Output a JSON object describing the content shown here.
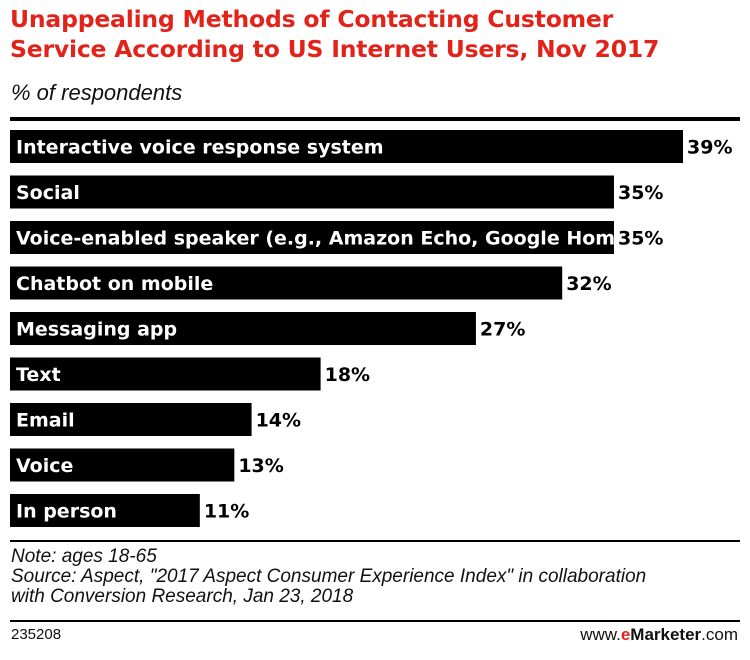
{
  "chart_data": {
    "type": "bar",
    "orientation": "horizontal",
    "title": "Unappealing Methods of Contacting Customer Service According to US Internet Users, Nov 2017",
    "title_lines": [
      "Unappealing Methods of Contacting Customer",
      "Service According to US Internet Users, Nov 2017"
    ],
    "subtitle": "% of respondents",
    "categories": [
      "Interactive voice response system",
      "Social",
      "Voice-enabled speaker (e.g., Amazon Echo, Google Home)",
      "Chatbot on mobile",
      "Messaging app",
      "Text",
      "Email",
      "Voice",
      "In person"
    ],
    "values": [
      39,
      35,
      35,
      32,
      27,
      18,
      14,
      13,
      11
    ],
    "value_labels": [
      "39%",
      "35%",
      "35%",
      "32%",
      "27%",
      "18%",
      "14%",
      "13%",
      "11%"
    ],
    "xlim": [
      0,
      39
    ],
    "bar_color": "#000000",
    "label_color": "#ffffff"
  },
  "footer": {
    "note": "Note: ages 18-65",
    "source_lines": [
      "Source: Aspect, \"2017 Aspect Consumer Experience Index\" in collaboration",
      "with Conversion Research, Jan 23, 2018"
    ],
    "chart_id": "235208",
    "brand_prefix": "www.",
    "brand_e": "e",
    "brand_name": "Marketer",
    "brand_suffix": ".com"
  },
  "colors": {
    "title": "#e2231a",
    "bar": "#000000",
    "background": "#ffffff"
  }
}
